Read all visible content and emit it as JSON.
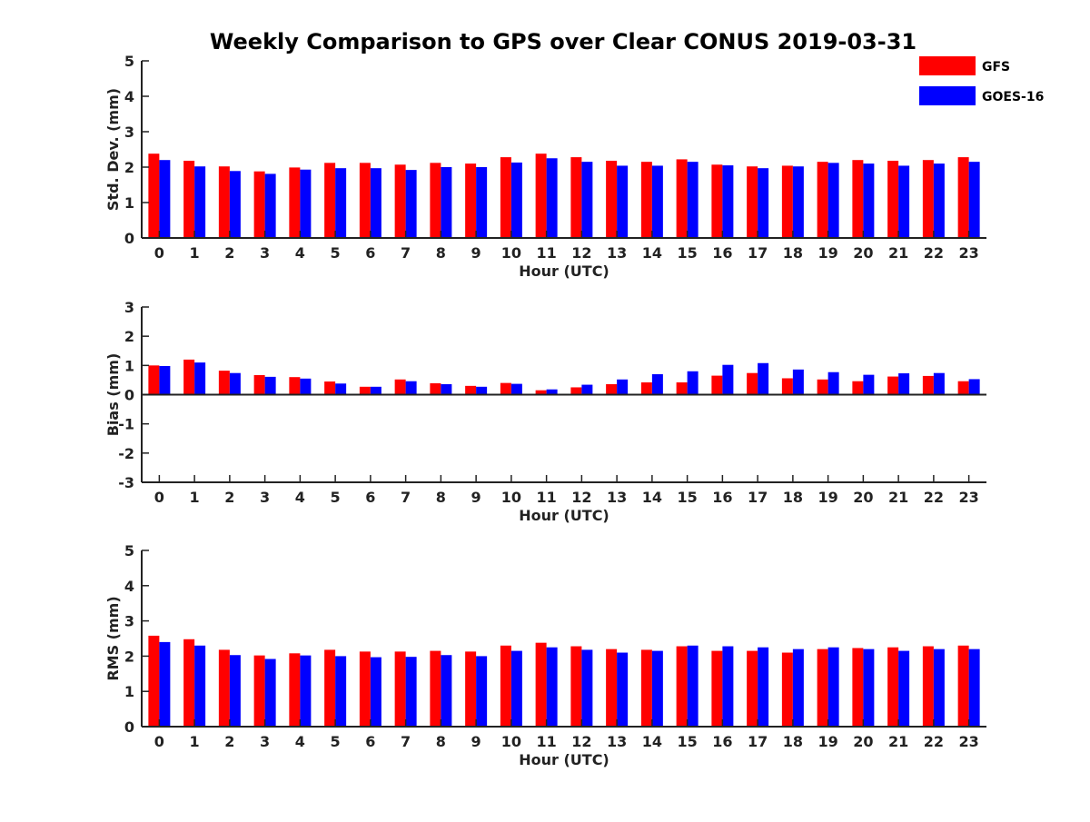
{
  "chart_data": {
    "type": "bar",
    "title": "Weekly Comparison to GPS over Clear CONUS 2019-03-31",
    "legend": {
      "placement": "top-right",
      "entries": [
        "GFS",
        "GOES-16"
      ]
    },
    "colors": {
      "GFS": "#ff0000",
      "GOES-16": "#0000ff"
    },
    "panels": [
      {
        "id": "stddev",
        "xlabel": "Hour (UTC)",
        "ylabel": "Std. Dev. (mm)",
        "ylim": [
          0,
          5
        ],
        "yticks": [
          0,
          1,
          2,
          3,
          4,
          5
        ],
        "categories": [
          "0",
          "1",
          "2",
          "3",
          "4",
          "5",
          "6",
          "7",
          "8",
          "9",
          "10",
          "11",
          "12",
          "13",
          "14",
          "15",
          "16",
          "17",
          "18",
          "19",
          "20",
          "21",
          "22",
          "23"
        ],
        "series": [
          {
            "name": "GFS",
            "values": [
              2.38,
              2.18,
              2.02,
              1.88,
              1.99,
              2.12,
              2.12,
              2.07,
              2.12,
              2.1,
              2.28,
              2.38,
              2.28,
              2.18,
              2.15,
              2.22,
              2.07,
              2.02,
              2.04,
              2.15,
              2.2,
              2.18,
              2.2,
              2.28
            ]
          },
          {
            "name": "GOES-16",
            "values": [
              2.2,
              2.02,
              1.89,
              1.81,
              1.93,
              1.97,
              1.97,
              1.92,
              2.0,
              2.0,
              2.13,
              2.25,
              2.15,
              2.04,
              2.04,
              2.15,
              2.05,
              1.97,
              2.02,
              2.12,
              2.1,
              2.04,
              2.1,
              2.15
            ]
          }
        ]
      },
      {
        "id": "bias",
        "xlabel": "Hour (UTC)",
        "ylabel": "Bias (mm)",
        "ylim": [
          -3,
          3
        ],
        "yticks": [
          -3,
          -2,
          -1,
          0,
          1,
          2,
          3
        ],
        "categories": [
          "0",
          "1",
          "2",
          "3",
          "4",
          "5",
          "6",
          "7",
          "8",
          "9",
          "10",
          "11",
          "12",
          "13",
          "14",
          "15",
          "16",
          "17",
          "18",
          "19",
          "20",
          "21",
          "22",
          "23"
        ],
        "series": [
          {
            "name": "GFS",
            "values": [
              1.0,
              1.2,
              0.82,
              0.67,
              0.6,
              0.45,
              0.27,
              0.52,
              0.39,
              0.3,
              0.4,
              0.15,
              0.25,
              0.36,
              0.42,
              0.42,
              0.65,
              0.74,
              0.56,
              0.52,
              0.46,
              0.62,
              0.64,
              0.46
            ]
          },
          {
            "name": "GOES-16",
            "values": [
              0.98,
              1.1,
              0.74,
              0.61,
              0.55,
              0.38,
              0.27,
              0.46,
              0.36,
              0.27,
              0.37,
              0.18,
              0.34,
              0.52,
              0.7,
              0.8,
              1.02,
              1.08,
              0.86,
              0.77,
              0.68,
              0.73,
              0.74,
              0.53
            ]
          }
        ]
      },
      {
        "id": "rms",
        "xlabel": "Hour (UTC)",
        "ylabel": "RMS (mm)",
        "ylim": [
          0,
          5
        ],
        "yticks": [
          0,
          1,
          2,
          3,
          4,
          5
        ],
        "categories": [
          "0",
          "1",
          "2",
          "3",
          "4",
          "5",
          "6",
          "7",
          "8",
          "9",
          "10",
          "11",
          "12",
          "13",
          "14",
          "15",
          "16",
          "17",
          "18",
          "19",
          "20",
          "21",
          "22",
          "23"
        ],
        "series": [
          {
            "name": "GFS",
            "values": [
              2.58,
              2.48,
              2.18,
              2.02,
              2.08,
              2.18,
              2.13,
              2.13,
              2.15,
              2.13,
              2.3,
              2.38,
              2.28,
              2.2,
              2.18,
              2.28,
              2.15,
              2.15,
              2.1,
              2.2,
              2.23,
              2.25,
              2.28,
              2.3
            ]
          },
          {
            "name": "GOES-16",
            "values": [
              2.4,
              2.3,
              2.03,
              1.92,
              2.02,
              2.0,
              1.97,
              1.98,
              2.03,
              2.0,
              2.15,
              2.25,
              2.18,
              2.1,
              2.15,
              2.3,
              2.28,
              2.25,
              2.2,
              2.25,
              2.2,
              2.15,
              2.2,
              2.2
            ]
          }
        ]
      }
    ]
  }
}
